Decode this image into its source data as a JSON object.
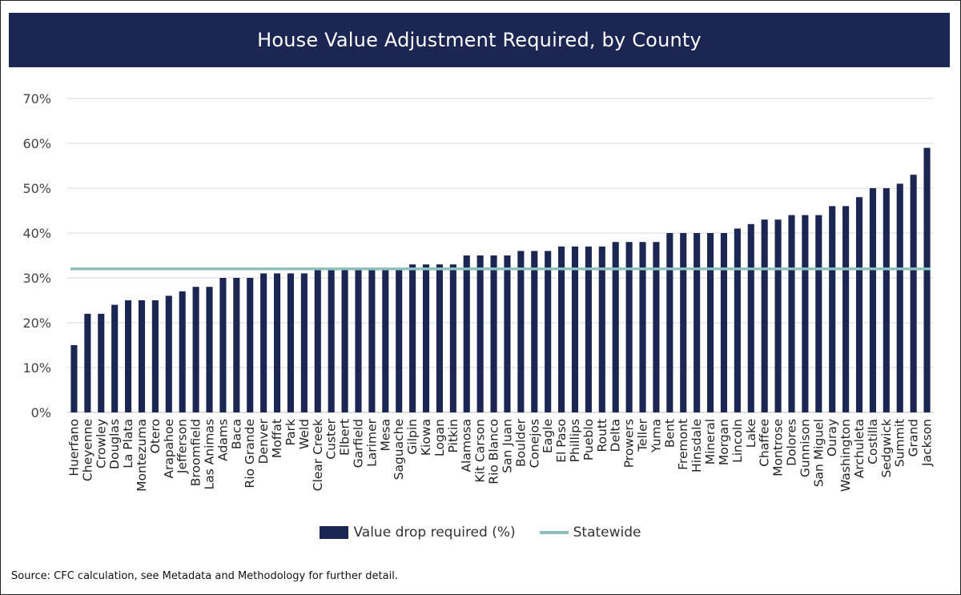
{
  "chart_data": {
    "type": "bar",
    "title": "House Value Adjustment Required, by County",
    "categories": [
      "Huerfano",
      "Cheyenne",
      "Crowley",
      "Douglas",
      "La Plata",
      "Montezuma",
      "Otero",
      "Arapahoe",
      "Jefferson",
      "Broomfield",
      "Las Animas",
      "Adams",
      "Baca",
      "Rio Grande",
      "Denver",
      "Moffat",
      "Park",
      "Weld",
      "Clear Creek",
      "Custer",
      "Elbert",
      "Garfield",
      "Larimer",
      "Mesa",
      "Saguache",
      "Gilpin",
      "Kiowa",
      "Logan",
      "Pitkin",
      "Alamosa",
      "Kit Carson",
      "Rio Blanco",
      "San Juan",
      "Boulder",
      "Conejos",
      "Eagle",
      "El Paso",
      "Phillips",
      "Pueblo",
      "Routt",
      "Delta",
      "Prowers",
      "Teller",
      "Yuma",
      "Bent",
      "Fremont",
      "Hinsdale",
      "Mineral",
      "Morgan",
      "Lincoln",
      "Lake",
      "Chaffee",
      "Montrose",
      "Dolores",
      "Gunnison",
      "San Miguel",
      "Ouray",
      "Washington",
      "Archuleta",
      "Costilla",
      "Sedgwick",
      "Summit",
      "Grand",
      "Jackson"
    ],
    "series": [
      {
        "name": "Value drop required (%)",
        "color": "#1c2653",
        "values": [
          15,
          22,
          22,
          24,
          25,
          25,
          25,
          26,
          27,
          28,
          28,
          30,
          30,
          30,
          31,
          31,
          31,
          31,
          32,
          32,
          32,
          32,
          32,
          32,
          32,
          33,
          33,
          33,
          33,
          35,
          35,
          35,
          35,
          36,
          36,
          36,
          37,
          37,
          37,
          37,
          38,
          38,
          38,
          38,
          40,
          40,
          40,
          40,
          40,
          41,
          42,
          43,
          43,
          44,
          44,
          44,
          46,
          46,
          48,
          50,
          50,
          51,
          53,
          59
        ]
      },
      {
        "name": "Statewide",
        "color": "#8fbfbf",
        "type": "line",
        "value": 32
      }
    ],
    "ylim": [
      0,
      70
    ],
    "yticks": [
      "0%",
      "10%",
      "20%",
      "30%",
      "40%",
      "50%",
      "60%",
      "70%"
    ],
    "grid": true,
    "legend_position": "bottom"
  },
  "legend": {
    "bar_label": "Value drop required (%)",
    "line_label": "Statewide"
  },
  "source": "Source: CFC calculation, see Metadata and Methodology for further detail."
}
